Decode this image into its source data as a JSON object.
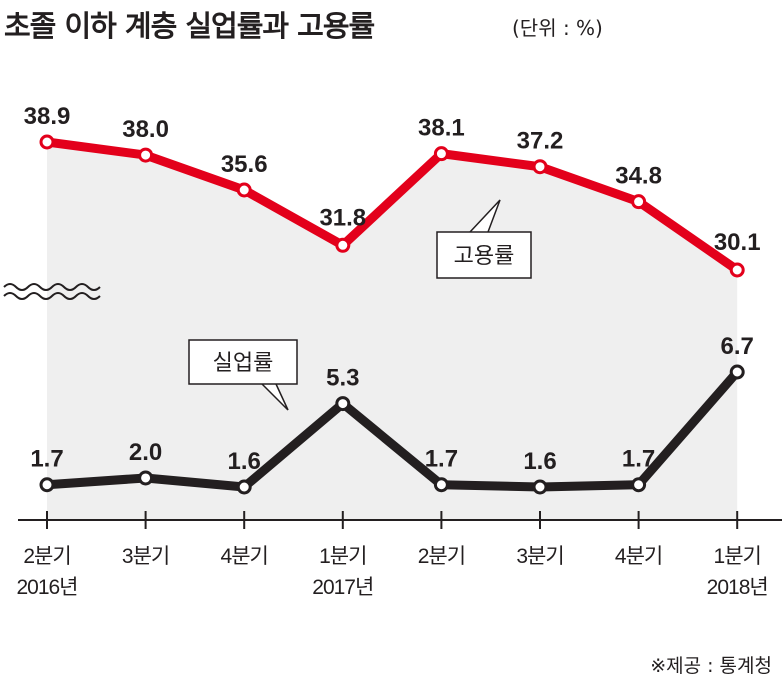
{
  "chart_data": {
    "type": "line",
    "title": "초졸 이하 계층 실업률과 고용률",
    "unit": "(단위 : %)",
    "categories": [
      "2분기",
      "3분기",
      "4분기",
      "1분기",
      "2분기",
      "3분기",
      "4분기",
      "1분기"
    ],
    "year_labels": [
      "2016년",
      "",
      "",
      "2017년",
      "",
      "",
      "",
      "2018년"
    ],
    "series": [
      {
        "name": "고용률",
        "color": "#e3001b",
        "values": [
          38.9,
          38.0,
          35.6,
          31.8,
          38.1,
          37.2,
          34.8,
          30.1
        ]
      },
      {
        "name": "실업률",
        "color": "#231f20",
        "values": [
          1.7,
          2.0,
          1.6,
          5.3,
          1.7,
          1.6,
          1.7,
          6.7
        ]
      }
    ],
    "value_labels": {
      "고용률": [
        "38.9",
        "38.0",
        "35.6",
        "31.8",
        "38.1",
        "37.2",
        "34.8",
        "30.1"
      ],
      "실업률": [
        "1.7",
        "2.0",
        "1.6",
        "5.3",
        "1.7",
        "1.6",
        "1.7",
        "6.7"
      ]
    },
    "axis_break": true,
    "grid": false,
    "source": "※제공 : 통계청"
  }
}
